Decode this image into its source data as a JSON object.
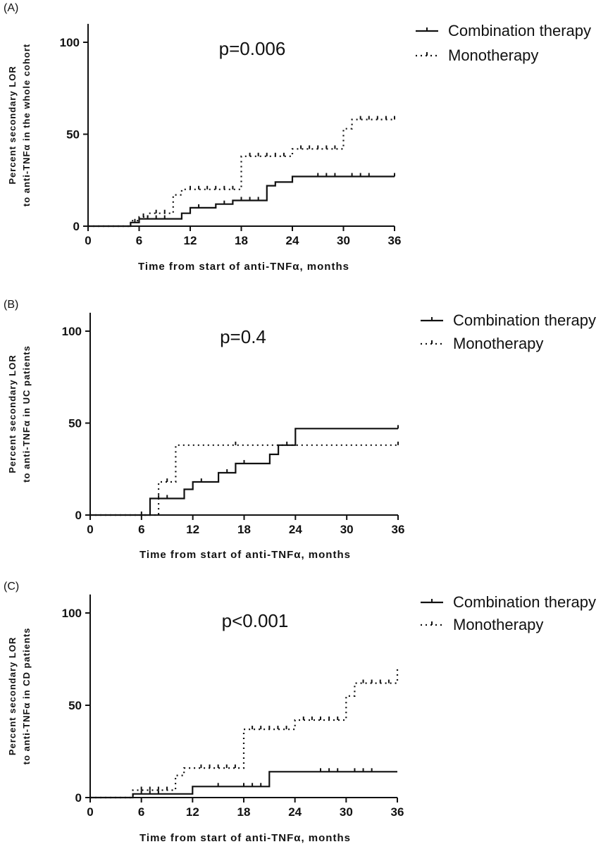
{
  "chart_data": [
    {
      "type": "line",
      "panel_label": "(A)",
      "title": "",
      "annotation": "p=0.006",
      "xlabel": "Time from start of anti-TNFα, months",
      "ylabel_line1": "Percent secondary LOR",
      "ylabel_line2": "to anti-TNFα in the whole cohort",
      "xlim": [
        0,
        36
      ],
      "ylim": [
        0,
        110
      ],
      "xticks": [
        0,
        6,
        12,
        18,
        24,
        30,
        36
      ],
      "yticks": [
        0,
        50,
        100
      ],
      "legend": [
        "Combination therapy",
        "Monotherapy"
      ],
      "series": [
        {
          "name": "Combination therapy",
          "style": "solid",
          "x": [
            0,
            5,
            5,
            6,
            6,
            11,
            11,
            12,
            12,
            15,
            15,
            17,
            17,
            21,
            21,
            22,
            22,
            24,
            24,
            36
          ],
          "y": [
            0,
            0,
            2,
            2,
            4,
            4,
            7,
            7,
            10,
            10,
            12,
            12,
            14,
            14,
            22,
            22,
            24,
            24,
            27,
            27
          ],
          "censor_x": [
            5.5,
            7,
            8,
            9,
            13,
            16,
            18,
            19,
            20,
            27,
            28,
            29,
            31,
            32,
            33,
            36
          ]
        },
        {
          "name": "Monotherapy",
          "style": "dotted",
          "x": [
            0,
            5,
            5,
            6,
            6,
            7,
            7,
            10,
            10,
            11,
            11,
            18,
            18,
            24,
            24,
            30,
            30,
            31,
            31,
            36
          ],
          "y": [
            0,
            0,
            3,
            3,
            5,
            5,
            7,
            7,
            17,
            17,
            20,
            20,
            38,
            38,
            42,
            42,
            53,
            53,
            58,
            58
          ],
          "censor_x": [
            6.5,
            8,
            9,
            12,
            13,
            14,
            15,
            16,
            17,
            19,
            20,
            21,
            22,
            23,
            25,
            26,
            27,
            28,
            29,
            32,
            33,
            34,
            35,
            36
          ]
        }
      ]
    },
    {
      "type": "line",
      "panel_label": "(B)",
      "title": "",
      "annotation": "p=0.4",
      "xlabel": "Time from start of anti-TNFα, months",
      "ylabel_line1": "Percent secondary LOR",
      "ylabel_line2": "to anti-TNFα in UC patients",
      "xlim": [
        0,
        36
      ],
      "ylim": [
        0,
        110
      ],
      "xticks": [
        0,
        6,
        12,
        18,
        24,
        30,
        36
      ],
      "yticks": [
        0,
        50,
        100
      ],
      "legend": [
        "Combination therapy",
        "Monotherapy"
      ],
      "series": [
        {
          "name": "Combination therapy",
          "style": "solid",
          "x": [
            0,
            7,
            7,
            11,
            11,
            12,
            12,
            15,
            15,
            17,
            17,
            21,
            21,
            22,
            22,
            24,
            24,
            36
          ],
          "y": [
            0,
            0,
            9,
            9,
            14,
            14,
            18,
            18,
            23,
            23,
            28,
            28,
            33,
            33,
            38,
            38,
            47,
            47
          ],
          "censor_x": [
            8,
            9,
            13,
            16,
            18,
            23,
            36
          ]
        },
        {
          "name": "Monotherapy",
          "style": "dotted",
          "x": [
            0,
            8,
            8,
            10,
            10,
            36
          ],
          "y": [
            0,
            0,
            18,
            18,
            38,
            38
          ],
          "censor_x": [
            6,
            9,
            17,
            36
          ]
        }
      ]
    },
    {
      "type": "line",
      "panel_label": "(C)",
      "title": "",
      "annotation": "p<0.001",
      "xlabel": "Time from start of anti-TNFα, months",
      "ylabel_line1": "Percent secondary LOR",
      "ylabel_line2": "to anti-TNFα  in CD patients",
      "xlim": [
        0,
        36
      ],
      "ylim": [
        0,
        110
      ],
      "xticks": [
        0,
        6,
        12,
        18,
        24,
        30,
        36
      ],
      "yticks": [
        0,
        50,
        100
      ],
      "legend": [
        "Combination therapy",
        "Monotherapy"
      ],
      "series": [
        {
          "name": "Combination therapy",
          "style": "solid",
          "x": [
            0,
            5,
            5,
            12,
            12,
            21,
            21,
            36
          ],
          "y": [
            0,
            0,
            2,
            2,
            6,
            6,
            14,
            14
          ],
          "censor_x": [
            6,
            7,
            8,
            15,
            18,
            19,
            20,
            27,
            28,
            29,
            31,
            32,
            33
          ]
        },
        {
          "name": "Monotherapy",
          "style": "dotted",
          "x": [
            0,
            5,
            5,
            10,
            10,
            11,
            11,
            18,
            18,
            24,
            24,
            30,
            30,
            31,
            31,
            36,
            36
          ],
          "y": [
            0,
            0,
            4,
            4,
            12,
            12,
            16,
            16,
            37,
            37,
            42,
            42,
            55,
            55,
            62,
            62,
            70
          ],
          "censor_x": [
            6,
            7,
            8,
            9,
            13,
            14,
            15,
            16,
            17,
            19,
            20,
            21,
            22,
            23,
            25,
            26,
            27,
            28,
            29,
            32,
            33,
            34,
            35
          ]
        }
      ]
    }
  ]
}
